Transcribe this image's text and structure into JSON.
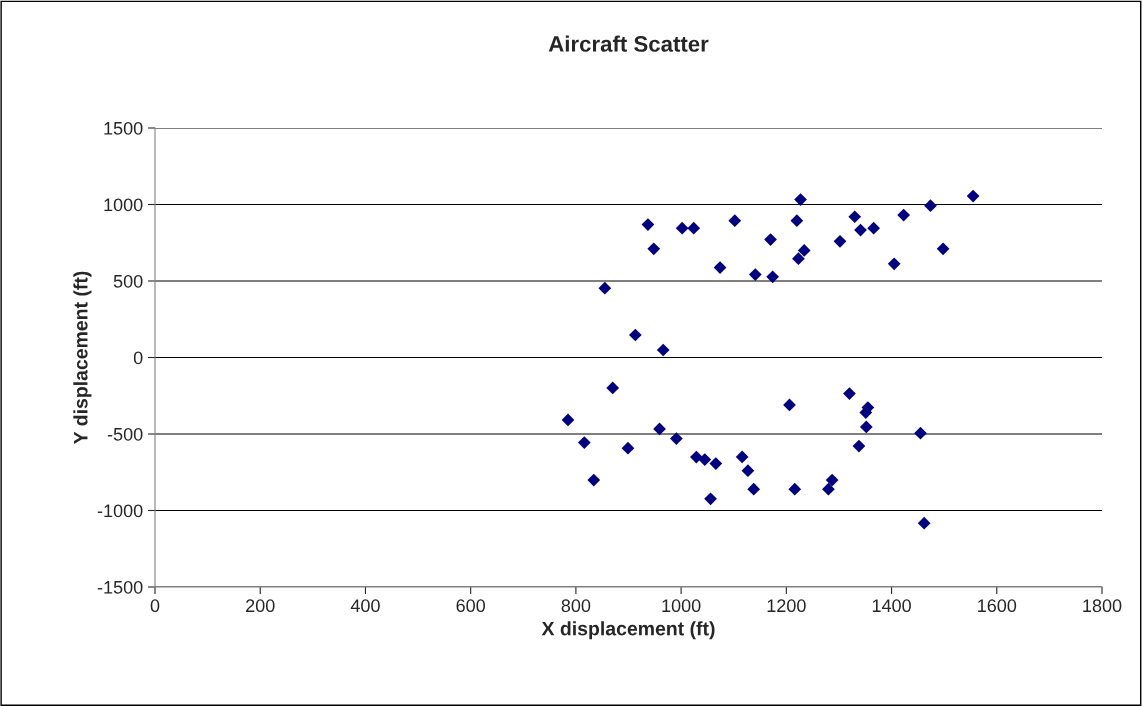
{
  "chart_data": {
    "type": "scatter",
    "title": "Aircraft Scatter",
    "xlabel": "X displacement (ft)",
    "ylabel": "Y displacement (ft)",
    "series": [
      {
        "color": "#000080",
        "x": [
          855,
          913,
          966,
          937,
          948,
          1002,
          1024,
          1074,
          1102,
          1141,
          1170,
          1174,
          1220,
          1223,
          1234,
          1227,
          1302,
          1330,
          1341,
          1366,
          1405,
          1423,
          1474,
          1498,
          1555,
          785,
          870,
          816,
          834,
          899,
          959,
          991,
          1029,
          1045,
          1066,
          1056,
          1116,
          1127,
          1138,
          1206,
          1216,
          1280,
          1287,
          1320,
          1338,
          1355,
          1351,
          1352,
          1455,
          1462
        ],
        "values": [
          453,
          147,
          49,
          869,
          710,
          845,
          845,
          588,
          894,
          542,
          771,
          527,
          894,
          646,
          700,
          1032,
          759,
          920,
          833,
          845,
          612,
          931,
          992,
          710,
          1055,
          -408,
          -199,
          -556,
          -801,
          -593,
          -467,
          -530,
          -651,
          -667,
          -693,
          -924,
          -650,
          -740,
          -861,
          -310,
          -861,
          -861,
          -801,
          -236,
          -579,
          -327,
          -360,
          -454,
          -495,
          -1083
        ]
      }
    ],
    "xlim": [
      0,
      1800
    ],
    "xticks": [
      0,
      200,
      400,
      600,
      800,
      1000,
      1200,
      1400,
      1600,
      1800
    ],
    "ylim": [
      -1500,
      1500
    ],
    "yticks": [
      -1500,
      -1000,
      -500,
      0,
      500,
      1000,
      1500
    ],
    "grid": "y",
    "marker": "diamond",
    "legend": false
  }
}
